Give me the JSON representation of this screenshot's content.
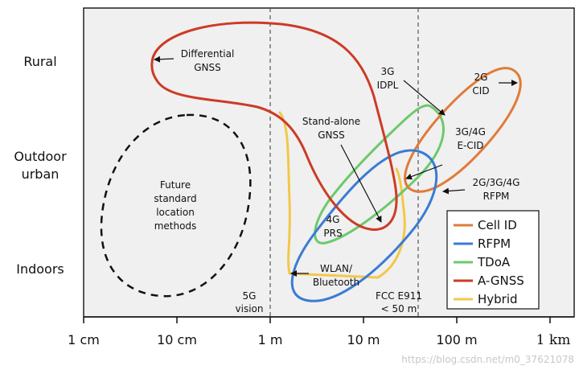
{
  "colors": {
    "cell_id": "#e07b39",
    "rfpm": "#3a7bd5",
    "tdoa": "#6cc96c",
    "a_gnss": "#cc3b26",
    "hybrid": "#f2c84b",
    "panel_bg": "#f0f0f0"
  },
  "rows": [
    {
      "label": "Rural"
    },
    {
      "label_line1": "Outdoor",
      "label_line2": "urban"
    },
    {
      "label": "Indoors"
    }
  ],
  "x_axis": {
    "ticks": [
      "1 cm",
      "10 cm",
      "1 m",
      "10 m",
      "100 m",
      "1 km"
    ]
  },
  "reference_lines": {
    "five_g_line1": "5G",
    "five_g_line2": "vision",
    "fcc_line1": "FCC E911",
    "fcc_line2": "< 50 m"
  },
  "annotations": {
    "dgnss_line1": "Differential",
    "dgnss_line2": "GNSS",
    "idpl_line1": "3G",
    "idpl_line2": "IDPL",
    "cid_line1": "2G",
    "cid_line2": "CID",
    "standalone_line1": "Stand-alone",
    "standalone_line2": "GNSS",
    "ecid_line1": "3G/4G",
    "ecid_line2": "E-CID",
    "rfpm_line1": "2G/3G/4G",
    "rfpm_line2": "RFPM",
    "prs_line1": "4G",
    "prs_line2": "PRS",
    "wlan_line1": "WLAN/",
    "wlan_line2": "Bluetooth",
    "future_line1": "Future",
    "future_line2": "standard",
    "future_line3": "location",
    "future_line4": "methods"
  },
  "legend": [
    {
      "label": "Cell ID",
      "color": "#e07b39"
    },
    {
      "label": "RFPM",
      "color": "#3a7bd5"
    },
    {
      "label": "TDoA",
      "color": "#6cc96c"
    },
    {
      "label": "A-GNSS",
      "color": "#cc3b26"
    },
    {
      "label": "Hybrid",
      "color": "#f2c84b"
    }
  ],
  "watermark": "https://blog.csdn.net/m0_37621078"
}
